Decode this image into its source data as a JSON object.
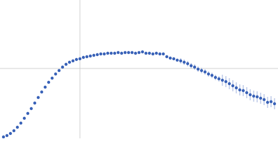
{
  "chart_data": {
    "type": "scatter",
    "color": "#3a63b8",
    "grid": true,
    "xlim": [
      0,
      4
    ],
    "ylim": [
      0,
      2
    ],
    "xticks": [
      1.15
    ],
    "yticks": [
      1.01
    ],
    "x": [
      0.05,
      0.1,
      0.15,
      0.2,
      0.25,
      0.3,
      0.35,
      0.4,
      0.45,
      0.5,
      0.55,
      0.6,
      0.65,
      0.7,
      0.75,
      0.8,
      0.85,
      0.9,
      0.95,
      1.0,
      1.05,
      1.1,
      1.15,
      1.2,
      1.25,
      1.3,
      1.35,
      1.4,
      1.45,
      1.5,
      1.55,
      1.6,
      1.65,
      1.7,
      1.75,
      1.8,
      1.85,
      1.9,
      1.95,
      2.0,
      2.05,
      2.1,
      2.15,
      2.2,
      2.25,
      2.3,
      2.35,
      2.4,
      2.45,
      2.5,
      2.55,
      2.6,
      2.65,
      2.7,
      2.75,
      2.8,
      2.85,
      2.9,
      2.95,
      3.0,
      3.05,
      3.1,
      3.15,
      3.2,
      3.25,
      3.3,
      3.35,
      3.4,
      3.45,
      3.5,
      3.55,
      3.6,
      3.65,
      3.7,
      3.75,
      3.8,
      3.85,
      3.9,
      3.95
    ],
    "values": [
      0.02,
      0.04,
      0.07,
      0.11,
      0.16,
      0.22,
      0.29,
      0.36,
      0.43,
      0.51,
      0.59,
      0.67,
      0.74,
      0.81,
      0.87,
      0.93,
      0.98,
      1.03,
      1.07,
      1.1,
      1.12,
      1.14,
      1.15,
      1.17,
      1.18,
      1.19,
      1.2,
      1.21,
      1.22,
      1.22,
      1.23,
      1.23,
      1.23,
      1.24,
      1.23,
      1.24,
      1.24,
      1.24,
      1.23,
      1.24,
      1.25,
      1.23,
      1.23,
      1.22,
      1.23,
      1.22,
      1.22,
      1.18,
      1.16,
      1.15,
      1.13,
      1.12,
      1.1,
      1.08,
      1.05,
      1.03,
      1.0,
      0.98,
      0.96,
      0.93,
      0.91,
      0.88,
      0.86,
      0.84,
      0.82,
      0.79,
      0.76,
      0.73,
      0.7,
      0.69,
      0.66,
      0.63,
      0.61,
      0.6,
      0.58,
      0.56,
      0.52,
      0.53,
      0.5
    ],
    "errors": [
      0.01,
      0.01,
      0.01,
      0.01,
      0.01,
      0.01,
      0.01,
      0.01,
      0.01,
      0.01,
      0.01,
      0.01,
      0.01,
      0.01,
      0.01,
      0.01,
      0.01,
      0.01,
      0.01,
      0.01,
      0.01,
      0.01,
      0.01,
      0.01,
      0.01,
      0.01,
      0.01,
      0.01,
      0.01,
      0.01,
      0.01,
      0.01,
      0.01,
      0.01,
      0.01,
      0.01,
      0.01,
      0.01,
      0.01,
      0.02,
      0.02,
      0.02,
      0.02,
      0.02,
      0.02,
      0.02,
      0.02,
      0.02,
      0.02,
      0.02,
      0.02,
      0.04,
      0.04,
      0.04,
      0.04,
      0.04,
      0.04,
      0.04,
      0.04,
      0.04,
      0.04,
      0.04,
      0.04,
      0.08,
      0.08,
      0.08,
      0.08,
      0.08,
      0.08,
      0.08,
      0.08,
      0.08,
      0.08,
      0.08,
      0.08,
      0.08,
      0.08,
      0.08,
      0.08
    ]
  }
}
